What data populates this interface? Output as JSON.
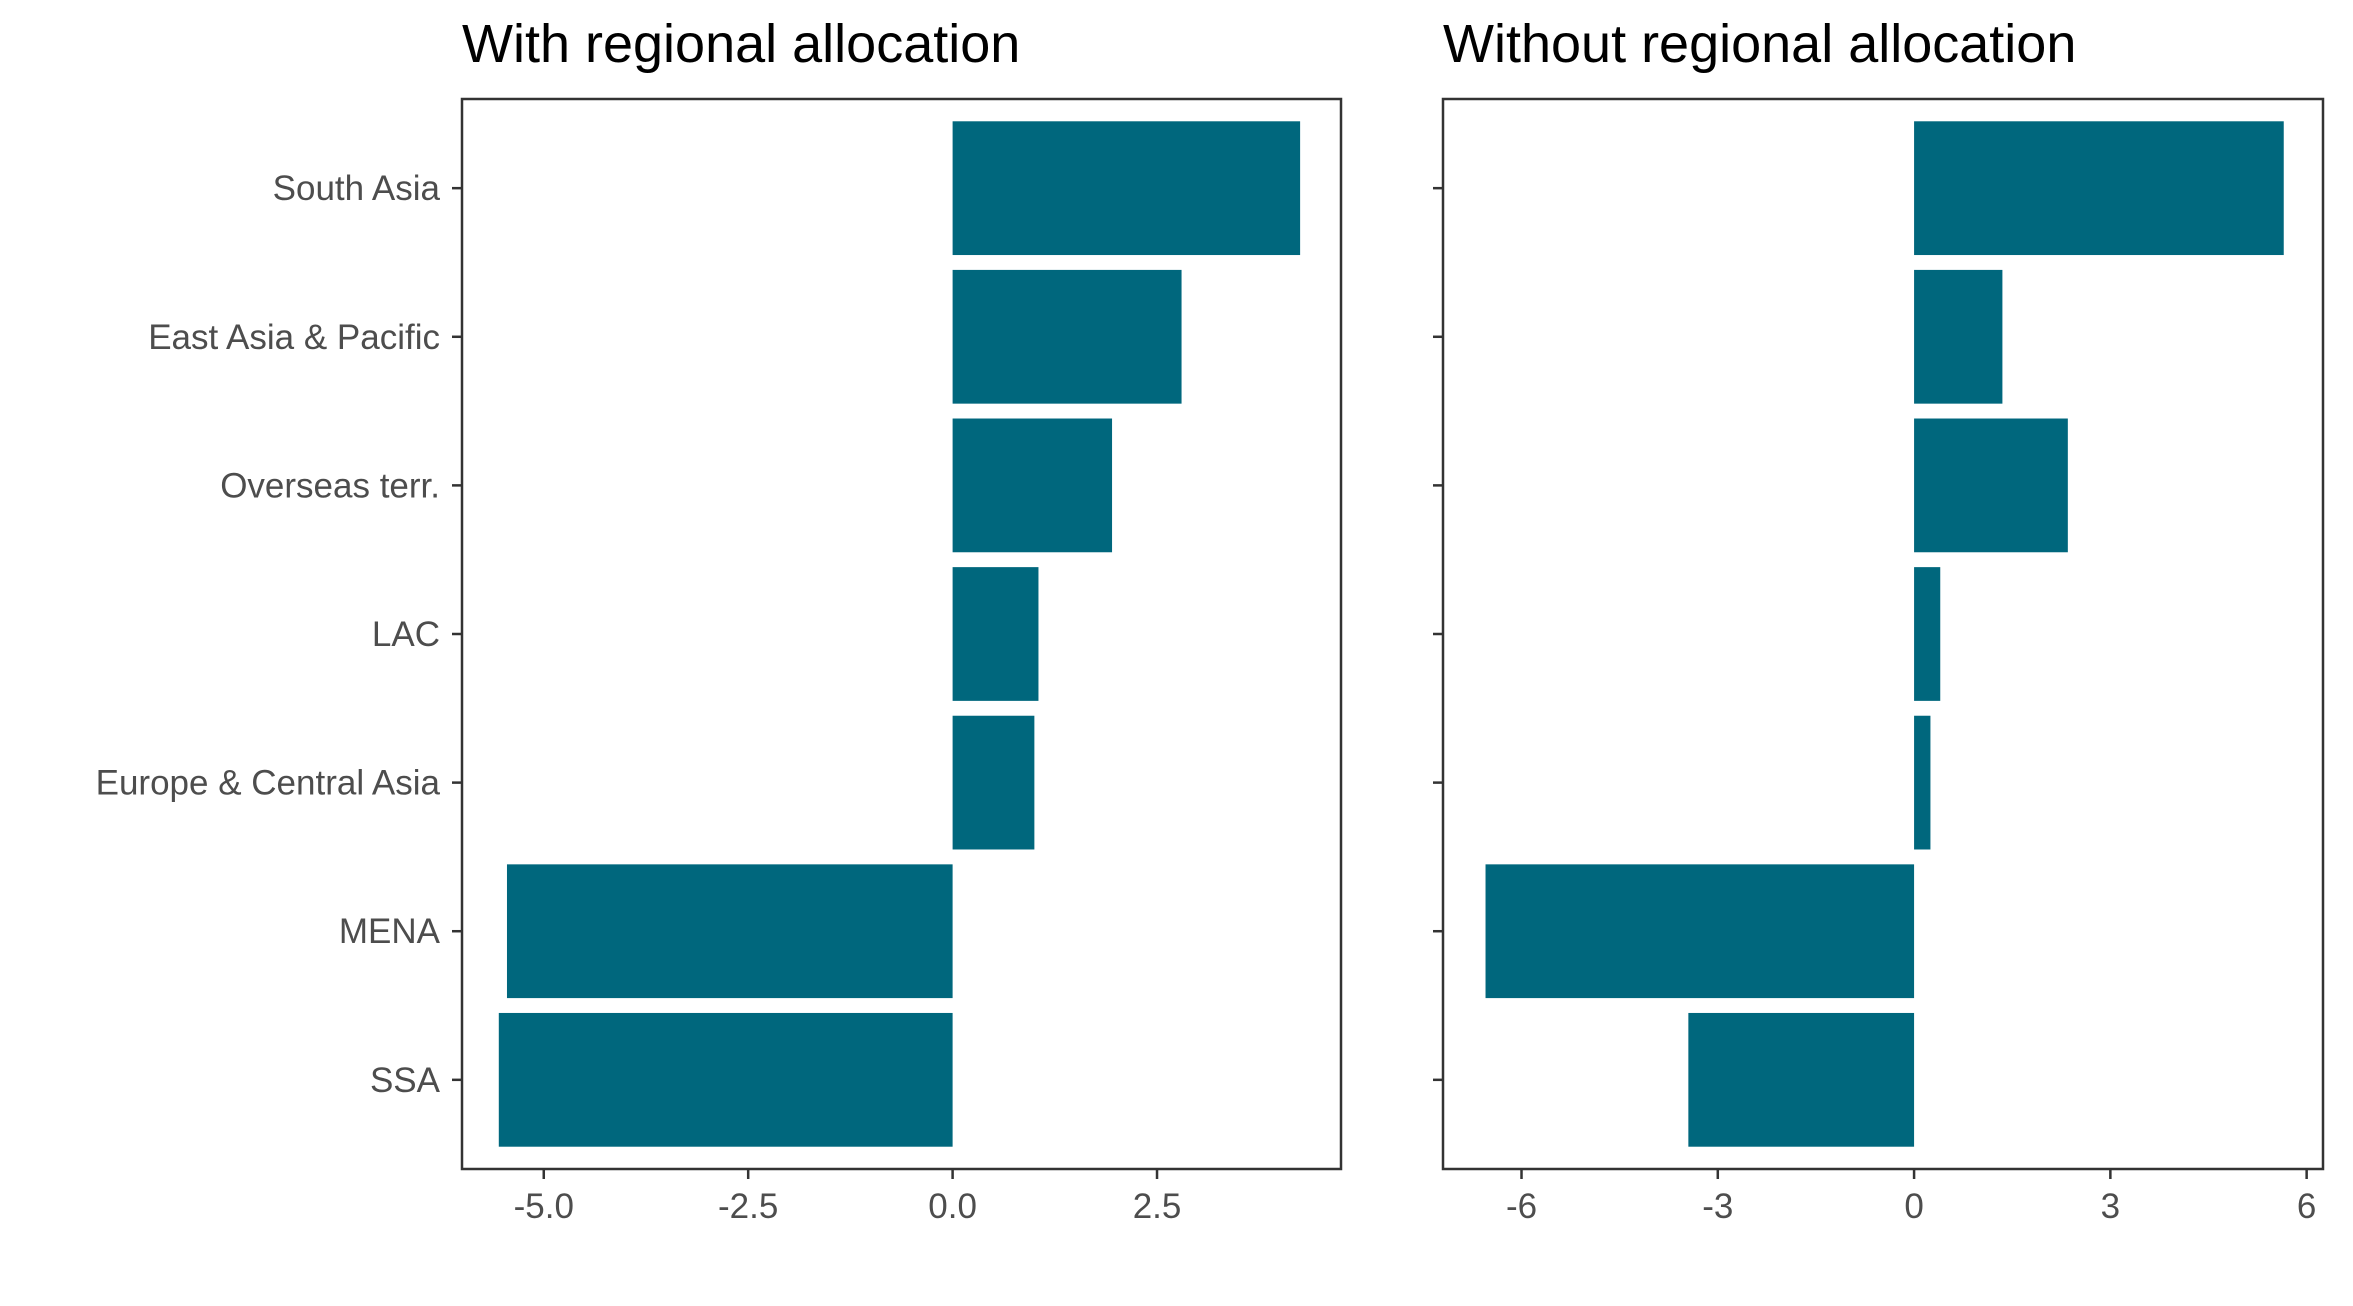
{
  "chart_data": [
    {
      "type": "bar",
      "orientation": "horizontal",
      "title": "With regional allocation",
      "categories": [
        "South Asia",
        "East Asia & Pacific",
        "Overseas terr.",
        "LAC",
        "Europe & Central Asia",
        "MENA",
        "SSA"
      ],
      "values": [
        4.25,
        2.8,
        1.95,
        1.05,
        1.0,
        -5.45,
        -5.55
      ],
      "xticks": [
        "-5.0",
        "-2.5",
        "0.0",
        "2.5"
      ],
      "xtick_values": [
        -5.0,
        -2.5,
        0.0,
        2.5
      ],
      "xlim": [
        -6.0,
        4.75
      ],
      "xlabel": "",
      "ylabel": "",
      "grid": false,
      "color": "#00677d"
    },
    {
      "type": "bar",
      "orientation": "horizontal",
      "title": "Without regional allocation",
      "categories": [
        "South Asia",
        "East Asia & Pacific",
        "Overseas terr.",
        "LAC",
        "Europe & Central Asia",
        "MENA",
        "SSA"
      ],
      "values": [
        5.65,
        1.35,
        2.35,
        0.4,
        0.25,
        -6.55,
        -3.45
      ],
      "xticks": [
        "-6",
        "-3",
        "0",
        "3",
        "6"
      ],
      "xtick_values": [
        -6,
        -3,
        0,
        3,
        6
      ],
      "xlim": [
        -7.2,
        6.25
      ],
      "xlabel": "",
      "ylabel": "",
      "grid": false,
      "color": "#00677d"
    }
  ]
}
